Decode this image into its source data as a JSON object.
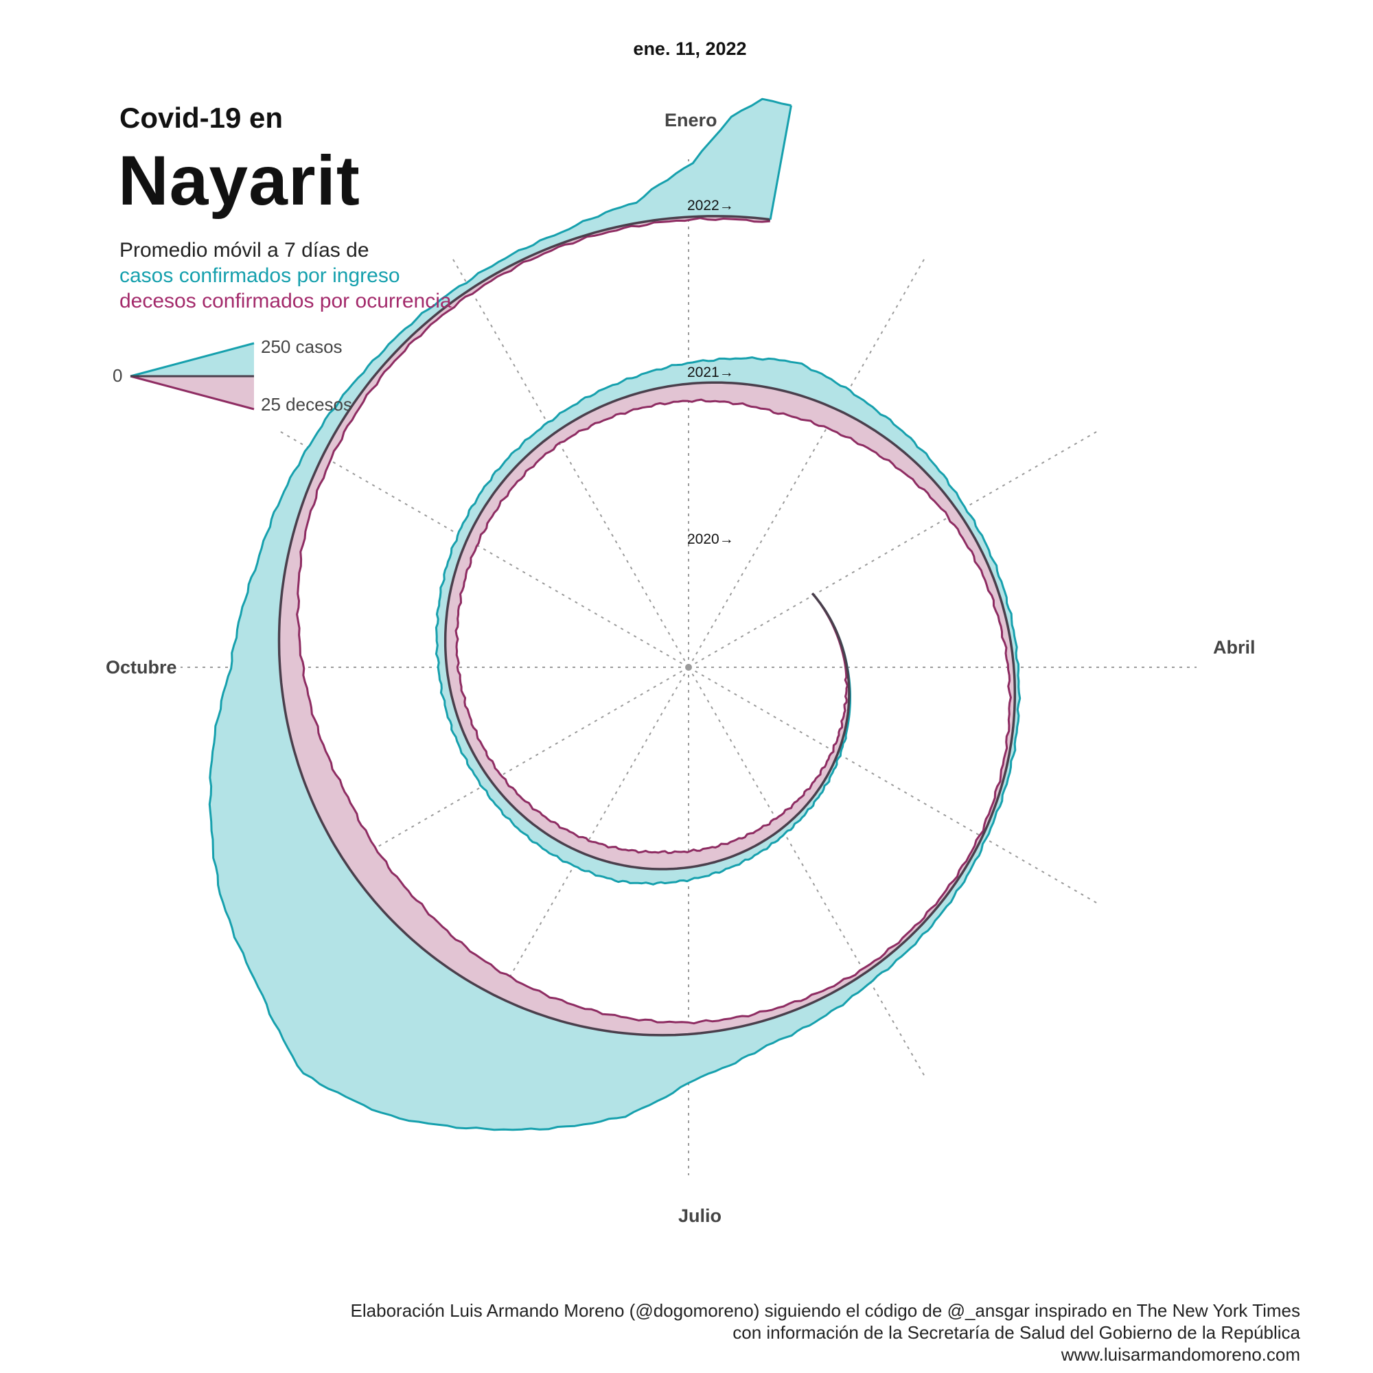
{
  "header": {
    "date": "ene. 11, 2022",
    "title_small": "Covid-19 en",
    "title_big": "Nayarit",
    "subtitle_line1": "Promedio móvil a 7 días de",
    "subtitle_cases": "casos confirmados por ingreso",
    "subtitle_deaths": "decesos confirmados por ocurrencia"
  },
  "legend": {
    "zero_label": "0",
    "cases_label": "250 casos",
    "deaths_label": "25 decesos"
  },
  "colors": {
    "cases_line": "#16a0ad",
    "cases_fill": "#b3e3e6",
    "deaths_line": "#8e2c62",
    "deaths_fill": "#e2c4d3",
    "baseline": "#4a3f4c",
    "grid": "#9a9a9a"
  },
  "months": [
    "Enero",
    "Abril",
    "Julio",
    "Octubre"
  ],
  "footer": {
    "line1": "Elaboración Luis Armando Moreno (@dogomoreno) siguiendo el código de @_ansgar inspirado en The New York Times",
    "line2": "con información de la Secretaría de Salud del Gobierno de la República",
    "line3": "www.luisarmandomoreno.com"
  },
  "chart_data": {
    "type": "area",
    "layout": "spiral",
    "title": "Covid-19 en Nayarit",
    "start_date": "2020-03-01",
    "end_date": "2022-01-11",
    "year_markers": [
      "2020→",
      "2021→",
      "2022→"
    ],
    "legend_scale": {
      "cases": 250,
      "deaths": 25
    },
    "grid": "radial, 12 directions",
    "series": [
      {
        "name": "casos confirmados por ingreso",
        "points": [
          [
            "2020-03-01",
            0
          ],
          [
            "2020-04-01",
            1
          ],
          [
            "2020-05-01",
            6
          ],
          [
            "2020-06-01",
            15
          ],
          [
            "2020-07-01",
            30
          ],
          [
            "2020-07-20",
            40
          ],
          [
            "2020-08-10",
            35
          ],
          [
            "2020-09-01",
            25
          ],
          [
            "2020-10-01",
            20
          ],
          [
            "2020-11-01",
            25
          ],
          [
            "2020-12-01",
            30
          ],
          [
            "2020-12-20",
            40
          ],
          [
            "2021-01-05",
            55
          ],
          [
            "2021-01-20",
            75
          ],
          [
            "2021-02-05",
            45
          ],
          [
            "2021-03-01",
            20
          ],
          [
            "2021-04-01",
            10
          ],
          [
            "2021-05-01",
            10
          ],
          [
            "2021-06-01",
            25
          ],
          [
            "2021-06-20",
            60
          ],
          [
            "2021-07-01",
            110
          ],
          [
            "2021-07-10",
            200
          ],
          [
            "2021-07-25",
            300
          ],
          [
            "2021-08-05",
            380
          ],
          [
            "2021-08-15",
            420
          ],
          [
            "2021-08-25",
            350
          ],
          [
            "2021-09-05",
            300
          ],
          [
            "2021-09-20",
            200
          ],
          [
            "2021-10-01",
            120
          ],
          [
            "2021-10-15",
            70
          ],
          [
            "2021-11-01",
            40
          ],
          [
            "2021-11-15",
            25
          ],
          [
            "2021-12-01",
            20
          ],
          [
            "2021-12-15",
            25
          ],
          [
            "2021-12-25",
            50
          ],
          [
            "2022-01-01",
            130
          ],
          [
            "2022-01-05",
            240
          ],
          [
            "2022-01-08",
            290
          ],
          [
            "2022-01-11",
            280
          ]
        ]
      },
      {
        "name": "decesos confirmados por ocurrencia",
        "points": [
          [
            "2020-03-01",
            0
          ],
          [
            "2020-04-01",
            0.5
          ],
          [
            "2020-05-01",
            2
          ],
          [
            "2020-06-01",
            4
          ],
          [
            "2020-06-20",
            5
          ],
          [
            "2020-07-10",
            6
          ],
          [
            "2020-08-01",
            5
          ],
          [
            "2020-09-01",
            4
          ],
          [
            "2020-10-01",
            4
          ],
          [
            "2020-11-01",
            4
          ],
          [
            "2020-12-01",
            4
          ],
          [
            "2021-01-01",
            6
          ],
          [
            "2021-01-20",
            8
          ],
          [
            "2021-02-05",
            7
          ],
          [
            "2021-03-01",
            4
          ],
          [
            "2021-04-01",
            2
          ],
          [
            "2021-05-01",
            1
          ],
          [
            "2021-06-01",
            1.5
          ],
          [
            "2021-07-01",
            4
          ],
          [
            "2021-08-01",
            8
          ],
          [
            "2021-08-20",
            11
          ],
          [
            "2021-09-10",
            12
          ],
          [
            "2021-10-01",
            8
          ],
          [
            "2021-10-20",
            4
          ],
          [
            "2021-11-15",
            2
          ],
          [
            "2021-12-15",
            1
          ],
          [
            "2022-01-11",
            1
          ]
        ]
      }
    ]
  }
}
